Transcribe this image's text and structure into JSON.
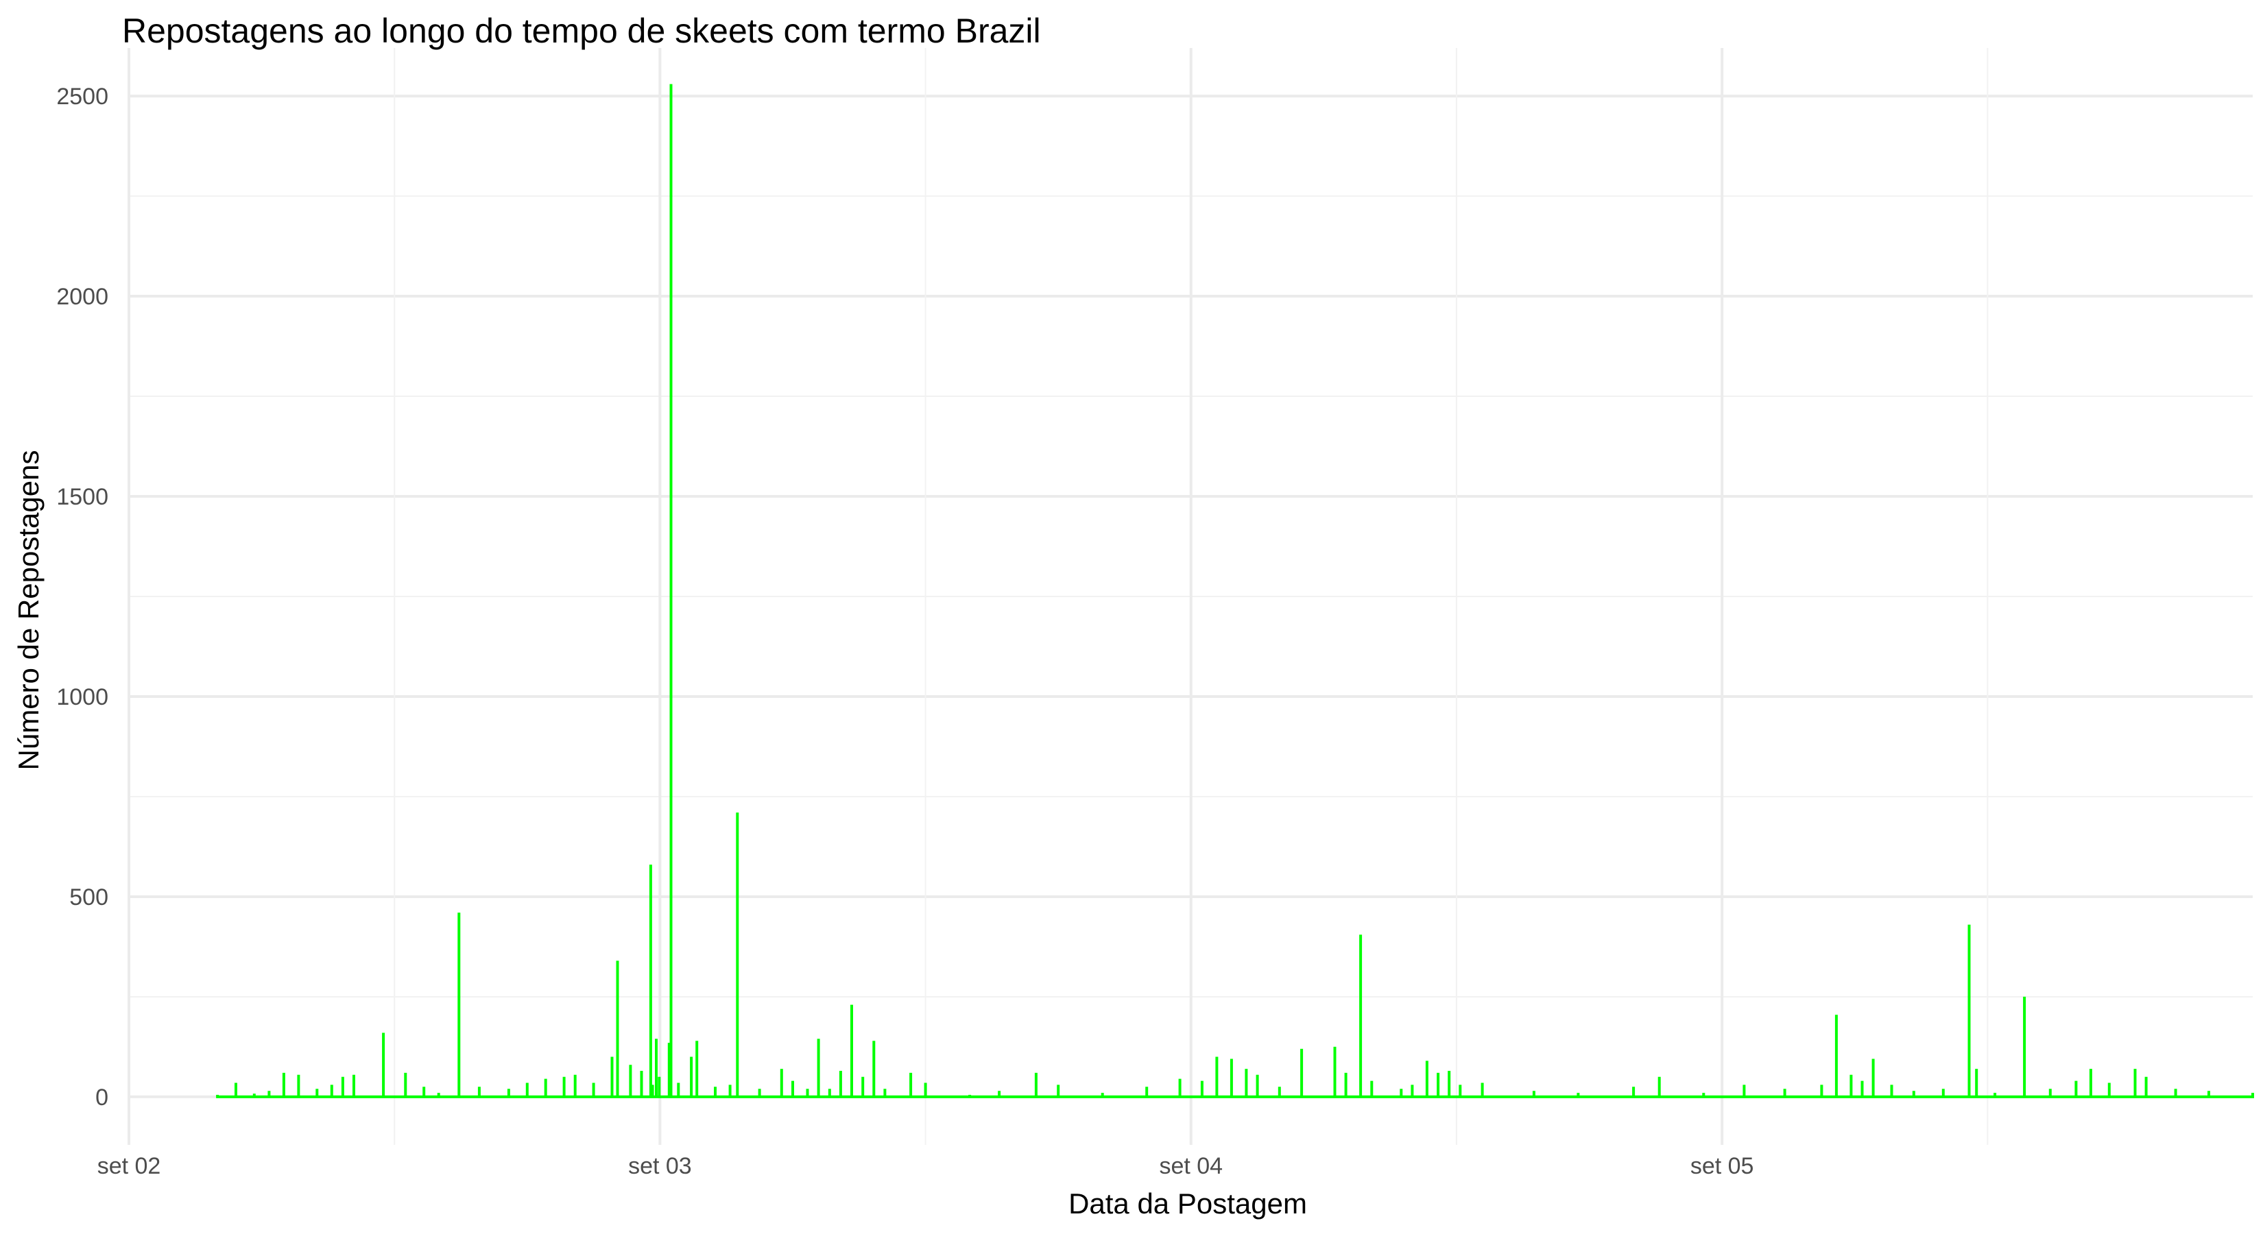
{
  "chart_data": {
    "type": "line",
    "title": "Repostagens ao longo do tempo de skeets com termo Brazil",
    "xlabel": "Data da Postagem",
    "ylabel": "Número de Repostagens",
    "x_ticks": [
      "set 02",
      "set 03",
      "set 04",
      "set 05"
    ],
    "x_tick_dates": [
      "2024-09-02T00:00",
      "2024-09-03T00:00",
      "2024-09-04T00:00",
      "2024-09-05T00:00"
    ],
    "xlim": [
      "2024-09-02T00:00",
      "2024-09-05T23:59"
    ],
    "y_ticks": [
      0,
      500,
      1000,
      1500,
      2000,
      2500
    ],
    "ylim": [
      -120,
      2620
    ],
    "grid": true,
    "line_color": "#00FF00",
    "series": [
      {
        "points": [
          [
            "2024-09-02T04:00",
            5
          ],
          [
            "2024-09-02T04:50",
            35
          ],
          [
            "2024-09-02T05:40",
            8
          ],
          [
            "2024-09-02T06:20",
            15
          ],
          [
            "2024-09-02T07:00",
            60
          ],
          [
            "2024-09-02T07:40",
            55
          ],
          [
            "2024-09-02T08:30",
            20
          ],
          [
            "2024-09-02T09:10",
            30
          ],
          [
            "2024-09-02T09:40",
            50
          ],
          [
            "2024-09-02T10:10",
            55
          ],
          [
            "2024-09-02T11:30",
            160
          ],
          [
            "2024-09-02T12:30",
            60
          ],
          [
            "2024-09-02T13:20",
            25
          ],
          [
            "2024-09-02T14:00",
            10
          ],
          [
            "2024-09-02T14:55",
            460
          ],
          [
            "2024-09-02T15:50",
            25
          ],
          [
            "2024-09-02T17:10",
            20
          ],
          [
            "2024-09-02T18:00",
            35
          ],
          [
            "2024-09-02T18:50",
            45
          ],
          [
            "2024-09-02T19:40",
            50
          ],
          [
            "2024-09-02T20:10",
            55
          ],
          [
            "2024-09-02T21:00",
            35
          ],
          [
            "2024-09-02T21:50",
            100
          ],
          [
            "2024-09-02T22:05",
            340
          ],
          [
            "2024-09-02T22:40",
            80
          ],
          [
            "2024-09-02T23:10",
            65
          ],
          [
            "2024-09-02T23:40",
            30
          ],
          [
            "2024-09-03T00:00",
            0
          ],
          [
            "2024-09-02T23:35",
            580
          ],
          [
            "2024-09-02T23:50",
            145
          ],
          [
            "2024-09-02T23:58",
            50
          ],
          [
            "2024-09-03T00:25",
            135
          ],
          [
            "2024-09-03T00:30",
            2530
          ],
          [
            "2024-09-03T00:50",
            35
          ],
          [
            "2024-09-03T01:25",
            100
          ],
          [
            "2024-09-03T01:40",
            140
          ],
          [
            "2024-09-03T02:30",
            25
          ],
          [
            "2024-09-03T03:10",
            30
          ],
          [
            "2024-09-03T03:30",
            710
          ],
          [
            "2024-09-03T04:30",
            20
          ],
          [
            "2024-09-03T05:30",
            70
          ],
          [
            "2024-09-03T06:00",
            40
          ],
          [
            "2024-09-03T06:40",
            20
          ],
          [
            "2024-09-03T07:10",
            145
          ],
          [
            "2024-09-03T07:40",
            20
          ],
          [
            "2024-09-03T08:10",
            65
          ],
          [
            "2024-09-03T08:40",
            230
          ],
          [
            "2024-09-03T09:10",
            50
          ],
          [
            "2024-09-03T09:40",
            140
          ],
          [
            "2024-09-03T10:10",
            20
          ],
          [
            "2024-09-03T11:20",
            60
          ],
          [
            "2024-09-03T12:00",
            35
          ],
          [
            "2024-09-03T14:00",
            5
          ],
          [
            "2024-09-03T15:20",
            15
          ],
          [
            "2024-09-03T17:00",
            60
          ],
          [
            "2024-09-03T18:00",
            30
          ],
          [
            "2024-09-03T20:00",
            10
          ],
          [
            "2024-09-03T22:00",
            25
          ],
          [
            "2024-09-03T23:30",
            45
          ],
          [
            "2024-09-04T00:30",
            40
          ],
          [
            "2024-09-04T01:10",
            100
          ],
          [
            "2024-09-04T01:50",
            95
          ],
          [
            "2024-09-04T02:30",
            70
          ],
          [
            "2024-09-04T03:00",
            55
          ],
          [
            "2024-09-04T04:00",
            25
          ],
          [
            "2024-09-04T05:00",
            120
          ],
          [
            "2024-09-04T06:30",
            125
          ],
          [
            "2024-09-04T07:00",
            60
          ],
          [
            "2024-09-04T07:40",
            405
          ],
          [
            "2024-09-04T08:10",
            40
          ],
          [
            "2024-09-04T09:30",
            20
          ],
          [
            "2024-09-04T10:00",
            30
          ],
          [
            "2024-09-04T10:40",
            90
          ],
          [
            "2024-09-04T11:10",
            60
          ],
          [
            "2024-09-04T11:40",
            65
          ],
          [
            "2024-09-04T12:10",
            30
          ],
          [
            "2024-09-04T13:10",
            35
          ],
          [
            "2024-09-04T15:30",
            15
          ],
          [
            "2024-09-04T17:30",
            10
          ],
          [
            "2024-09-04T20:00",
            25
          ],
          [
            "2024-09-04T21:10",
            50
          ],
          [
            "2024-09-04T23:10",
            10
          ],
          [
            "2024-09-05T01:00",
            30
          ],
          [
            "2024-09-05T02:50",
            20
          ],
          [
            "2024-09-05T04:30",
            30
          ],
          [
            "2024-09-05T05:10",
            205
          ],
          [
            "2024-09-05T05:50",
            55
          ],
          [
            "2024-09-05T06:20",
            40
          ],
          [
            "2024-09-05T06:50",
            95
          ],
          [
            "2024-09-05T07:40",
            30
          ],
          [
            "2024-09-05T08:40",
            15
          ],
          [
            "2024-09-05T10:00",
            20
          ],
          [
            "2024-09-05T11:10",
            430
          ],
          [
            "2024-09-05T11:30",
            70
          ],
          [
            "2024-09-05T12:20",
            10
          ],
          [
            "2024-09-05T13:40",
            250
          ],
          [
            "2024-09-05T14:50",
            20
          ],
          [
            "2024-09-05T16:00",
            40
          ],
          [
            "2024-09-05T16:40",
            70
          ],
          [
            "2024-09-05T17:30",
            35
          ],
          [
            "2024-09-05T18:40",
            70
          ],
          [
            "2024-09-05T19:10",
            50
          ],
          [
            "2024-09-05T20:30",
            20
          ],
          [
            "2024-09-05T22:00",
            15
          ],
          [
            "2024-09-05T23:59",
            10
          ]
        ]
      }
    ]
  }
}
